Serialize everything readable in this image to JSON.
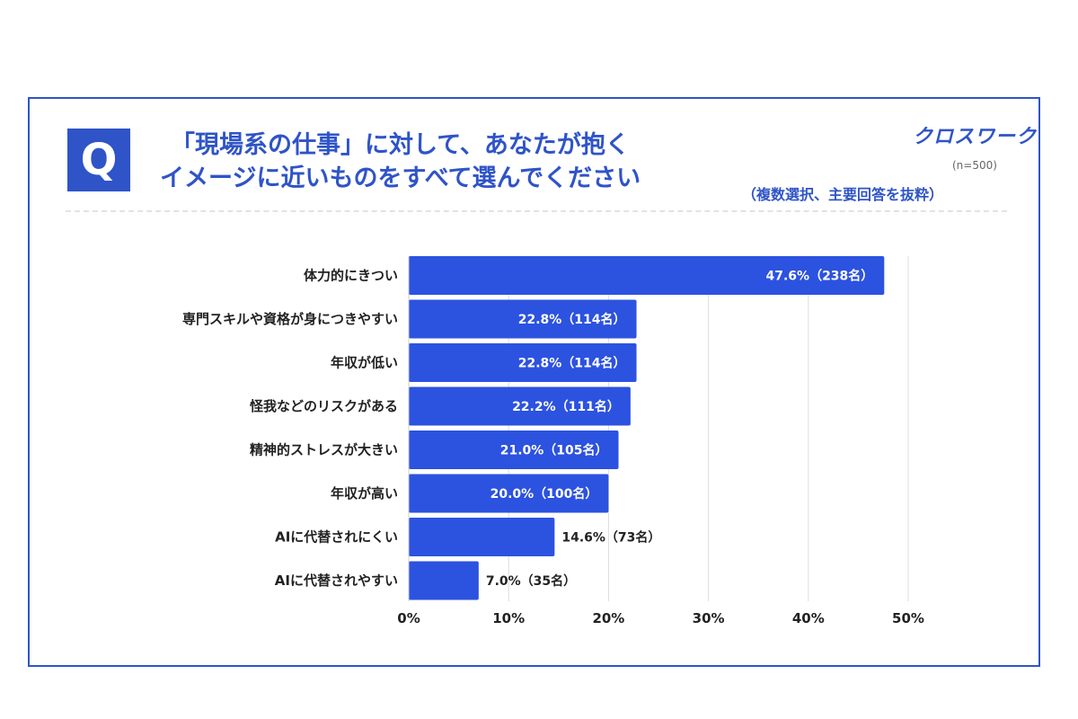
{
  "header": {
    "badge": "Q",
    "question_line1": "「現場系の仕事」に対して、あなたが抱く",
    "question_line2": "イメージに近いものをすべて選んでください",
    "brand": "クロスワーク",
    "sample_size": "(n=500)",
    "note": "（複数選択、主要回答を抜粋）"
  },
  "colors": {
    "accent": "#2f54c8",
    "bar": "#2c52e0",
    "grid": "#dddddd"
  },
  "chart_data": {
    "type": "bar",
    "orientation": "horizontal",
    "categories": [
      "体力的にきつい",
      "専門スキルや資格が身につきやすい",
      "年収が低い",
      "怪我などのリスクがある",
      "精神的ストレスが大きい",
      "年収が高い",
      "AIに代替されにくい",
      "AIに代替されやすい"
    ],
    "values": [
      47.6,
      22.8,
      22.8,
      22.2,
      21.0,
      20.0,
      14.6,
      7.0
    ],
    "data_labels": [
      "47.6%（238名）",
      "22.8%（114名）",
      "22.8%（114名）",
      "22.2%（111名）",
      "21.0%（105名）",
      "20.0%（100名）",
      "14.6%（73名）",
      "7.0%（35名）"
    ],
    "xlim": [
      0,
      50
    ],
    "xticks": [
      "0%",
      "10%",
      "20%",
      "30%",
      "40%",
      "50%"
    ],
    "grid": true,
    "legend": "none"
  }
}
